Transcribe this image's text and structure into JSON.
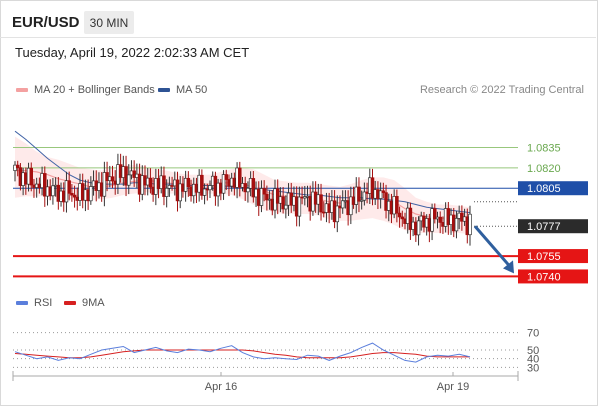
{
  "header": {
    "symbol": "EUR/USD",
    "timeframe": "30 MIN",
    "datetime": "Tuesday, April 19, 2022 2:02:33 AM CET"
  },
  "legend": {
    "ma20_label": "MA 20 + Bollinger Bands",
    "ma50_label": "MA 50",
    "credit": "Research © 2022 Trading Central",
    "rsi_label": "RSI",
    "rsi_ma_label": "9MA"
  },
  "colors": {
    "up_candle": "#ffffff",
    "down_candle": "#a50f0f",
    "ma20": "#f4a1a1",
    "bands": "#fde3e3",
    "ma50": "#4163a6",
    "support": "#e51515",
    "resistance_green": "#98c77c",
    "resistance_blue": "#1f4fa8",
    "forecast_arrow": "#2f5f9e",
    "rsi": "#5b7fdc",
    "rsi_ma": "#d62020"
  },
  "chart_data": [
    {
      "type": "candlestick",
      "title": "EUR/USD",
      "timeframe": "30 MIN",
      "ylim": [
        1.073,
        1.087
      ],
      "x_tick_labels": [
        "Apr 16",
        "Apr 19"
      ],
      "current_price": 1.0777,
      "levels": [
        {
          "value": 1.0835,
          "label": "1.0835",
          "role": "resistance",
          "color": "#98c77c"
        },
        {
          "value": 1.082,
          "label": "1.0820",
          "role": "resistance",
          "color": "#98c77c"
        },
        {
          "value": 1.0805,
          "label": "1.0805",
          "role": "pivot",
          "color": "#1f4fa8"
        },
        {
          "value": 1.0755,
          "label": "1.0755",
          "role": "support",
          "color": "#e51515"
        },
        {
          "value": 1.074,
          "label": "1.0740",
          "role": "support",
          "color": "#e51515"
        }
      ],
      "ohlc_anchor_closes": [
        1.0818,
        1.0812,
        1.0808,
        1.0805,
        1.0801,
        1.0802,
        1.0799,
        1.0804,
        1.0808,
        1.0813,
        1.0816,
        1.0813,
        1.0808,
        1.0807,
        1.0806,
        1.0805,
        1.0806,
        1.0805,
        1.0806,
        1.0807,
        1.0812,
        1.0808,
        1.0803,
        1.0798,
        1.0796,
        1.0795,
        1.0794,
        1.0798,
        1.0794,
        1.0788,
        1.0791,
        1.0795,
        1.08,
        1.0805,
        1.0797,
        1.079,
        1.0782,
        1.0777,
        1.0781,
        1.0783,
        1.0781,
        1.0782,
        1.078
      ],
      "ma20": [
        1.0818,
        1.0818,
        1.0817,
        1.0815,
        1.0812,
        1.081,
        1.0808,
        1.0806,
        1.0806,
        1.0807,
        1.0809,
        1.081,
        1.0811,
        1.081,
        1.0809,
        1.0808,
        1.0808,
        1.0808,
        1.0808,
        1.0809,
        1.0809,
        1.0808,
        1.0806,
        1.0803,
        1.08,
        1.0799,
        1.0798,
        1.0798,
        1.0797,
        1.0795,
        1.0794,
        1.0795,
        1.0797,
        1.0798,
        1.0797,
        1.0795,
        1.079,
        1.0786,
        1.0784,
        1.0783,
        1.0783,
        1.0782,
        1.0781
      ],
      "ma50": [
        1.0847,
        1.0841,
        1.0834,
        1.0827,
        1.0821,
        1.0815,
        1.0811,
        1.0809,
        1.0808,
        1.0808,
        1.0808,
        1.0809,
        1.0809,
        1.0808,
        1.0808,
        1.0808,
        1.0807,
        1.0807,
        1.0807,
        1.0807,
        1.0806,
        1.0806,
        1.0805,
        1.0804,
        1.0803,
        1.0802,
        1.0801,
        1.08,
        1.08,
        1.0799,
        1.0798,
        1.0798,
        1.0798,
        1.0797,
        1.0797,
        1.0796,
        1.0795,
        1.0793,
        1.0791,
        1.079,
        1.0789,
        1.0788,
        1.0787
      ],
      "bollinger_upper": [
        1.0843,
        1.0838,
        1.0832,
        1.0828,
        1.0826,
        1.0823,
        1.082,
        1.0819,
        1.0818,
        1.082,
        1.0822,
        1.0822,
        1.0821,
        1.0819,
        1.0818,
        1.0816,
        1.0815,
        1.0815,
        1.0815,
        1.0817,
        1.0819,
        1.082,
        1.0819,
        1.0815,
        1.0811,
        1.081,
        1.0809,
        1.0809,
        1.0808,
        1.0807,
        1.0806,
        1.0808,
        1.0811,
        1.0813,
        1.0813,
        1.0811,
        1.0805,
        1.0798,
        1.0795,
        1.0793,
        1.0793,
        1.0792,
        1.0791
      ],
      "bollinger_lower": [
        1.0798,
        1.0799,
        1.0799,
        1.0799,
        1.0798,
        1.0797,
        1.0797,
        1.0796,
        1.0797,
        1.0798,
        1.08,
        1.0801,
        1.0802,
        1.0802,
        1.0801,
        1.0801,
        1.0801,
        1.0801,
        1.0801,
        1.0801,
        1.08,
        1.0797,
        1.0793,
        1.0789,
        1.0787,
        1.0786,
        1.0786,
        1.0786,
        1.0785,
        1.0782,
        1.0781,
        1.0781,
        1.0782,
        1.0783,
        1.0781,
        1.0778,
        1.0774,
        1.0772,
        1.0772,
        1.0772,
        1.0772,
        1.0772,
        1.0771
      ],
      "forecast": {
        "from": 1.0777,
        "to": 1.074,
        "direction": "down"
      }
    },
    {
      "type": "line",
      "title": "RSI",
      "ylim": [
        20,
        80
      ],
      "y_ticks": [
        70,
        50,
        40,
        30
      ],
      "x_tick_labels": [
        "Apr 16",
        "Apr 19"
      ],
      "series": [
        {
          "name": "RSI",
          "values": [
            48,
            44,
            40,
            42,
            38,
            41,
            40,
            45,
            50,
            52,
            54,
            47,
            50,
            53,
            49,
            47,
            51,
            50,
            48,
            52,
            55,
            47,
            42,
            40,
            41,
            40,
            39,
            44,
            43,
            38,
            43,
            47,
            53,
            58,
            50,
            44,
            38,
            36,
            42,
            44,
            43,
            45,
            42
          ]
        },
        {
          "name": "9MA",
          "values": [
            46,
            45,
            44,
            43,
            42,
            41,
            41,
            42,
            44,
            46,
            48,
            49,
            50,
            50,
            50,
            50,
            50,
            50,
            50,
            50,
            50,
            50,
            49,
            47,
            45,
            44,
            42,
            41,
            41,
            41,
            41,
            42,
            44,
            46,
            47,
            47,
            46,
            45,
            43,
            42,
            42,
            42,
            42
          ]
        }
      ]
    }
  ]
}
